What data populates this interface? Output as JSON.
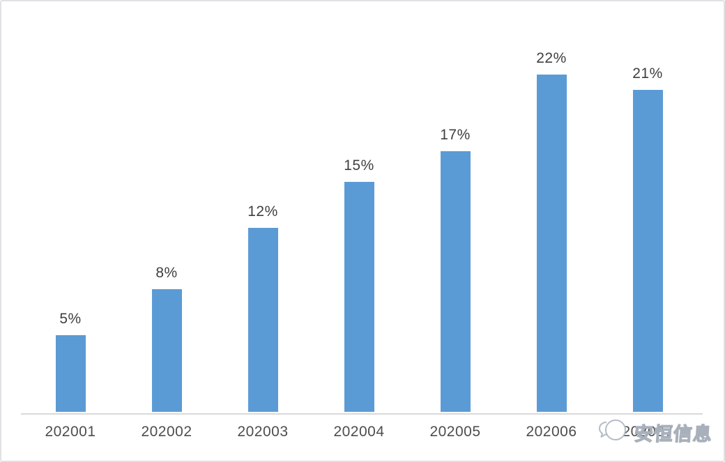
{
  "chart_data": {
    "type": "bar",
    "title": "",
    "categories": [
      "202001",
      "202002",
      "202003",
      "202004",
      "202005",
      "202006",
      "202007"
    ],
    "values": [
      5,
      8,
      12,
      15,
      17,
      22,
      21
    ],
    "value_labels": [
      "5%",
      "8%",
      "12%",
      "15%",
      "17%",
      "22%",
      "21%"
    ],
    "xlabel": "",
    "ylabel": "",
    "ylim": [
      0,
      25
    ],
    "grid": false,
    "legend": "none",
    "bar_color": "#5b9bd5",
    "axis_line_color": "#d9d9d9",
    "value_label_color": "#3f3f3f",
    "tick_label_color": "#4d4d4d"
  },
  "watermark": {
    "text": "安恒信息",
    "logo": "speech-bubbles-logo"
  }
}
